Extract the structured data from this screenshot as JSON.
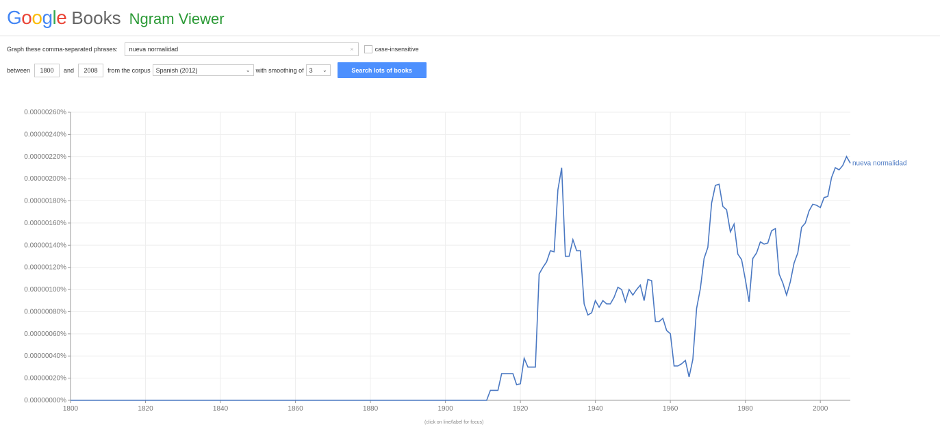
{
  "header": {
    "logo_letters": [
      "G",
      "o",
      "o",
      "g",
      "l",
      "e"
    ],
    "books": "Books",
    "ngram": "Ngram Viewer"
  },
  "form": {
    "phrases_label": "Graph these comma-separated phrases:",
    "phrases_value": "nueva normalidad",
    "clear_symbol": "×",
    "case_label": "case-insensitive",
    "case_checked": false,
    "between_label": "between",
    "start_year": "1800",
    "and_label": "and",
    "end_year": "2008",
    "corpus_label": "from the corpus",
    "corpus_value": "Spanish (2012)",
    "smoothing_label": "with smoothing of",
    "smoothing_value": "3",
    "search_button": "Search lots of books"
  },
  "footnote": "(click on line/label for focus)",
  "colors": {
    "line": "#4a78c2",
    "button": "#4d90fe",
    "brand_green": "#2b9a36"
  },
  "chart_data": {
    "type": "line",
    "xlim": [
      1800,
      2008
    ],
    "ylim": [
      0,
      2.6e-06
    ],
    "grid": true,
    "ytick_labels": [
      "0.00000000%",
      "0.00000020%",
      "0.00000040%",
      "0.00000060%",
      "0.00000080%",
      "0.00000100%",
      "0.00000120%",
      "0.00000140%",
      "0.00000160%",
      "0.00000180%",
      "0.00000200%",
      "0.00000220%",
      "0.00000240%",
      "0.00000260%"
    ],
    "ytick_values": [
      0,
      2e-07,
      4e-07,
      6e-07,
      8e-07,
      1e-06,
      1.2e-06,
      1.4e-06,
      1.6e-06,
      1.8e-06,
      2e-06,
      2.2e-06,
      2.4e-06,
      2.6e-06
    ],
    "xtick_values": [
      1800,
      1820,
      1840,
      1860,
      1880,
      1900,
      1920,
      1940,
      1960,
      1980,
      2000
    ],
    "series": [
      {
        "name": "nueva normalidad",
        "x": [
          1800,
          1910,
          1911,
          1912,
          1913,
          1914,
          1915,
          1916,
          1917,
          1918,
          1919,
          1920,
          1921,
          1922,
          1923,
          1924,
          1925,
          1926,
          1927,
          1928,
          1929,
          1930,
          1931,
          1932,
          1933,
          1934,
          1935,
          1936,
          1937,
          1938,
          1939,
          1940,
          1941,
          1942,
          1943,
          1944,
          1945,
          1946,
          1947,
          1948,
          1949,
          1950,
          1951,
          1952,
          1953,
          1954,
          1955,
          1956,
          1957,
          1958,
          1959,
          1960,
          1961,
          1962,
          1963,
          1964,
          1965,
          1966,
          1967,
          1968,
          1969,
          1970,
          1971,
          1972,
          1973,
          1974,
          1975,
          1976,
          1977,
          1978,
          1979,
          1980,
          1981,
          1982,
          1983,
          1984,
          1985,
          1986,
          1987,
          1988,
          1989,
          1990,
          1991,
          1992,
          1993,
          1994,
          1995,
          1996,
          1997,
          1998,
          1999,
          2000,
          2001,
          2002,
          2003,
          2004,
          2005,
          2006,
          2007,
          2008
        ],
        "y": [
          0,
          0,
          0,
          9e-08,
          9e-08,
          9e-08,
          2.4e-07,
          2.4e-07,
          2.4e-07,
          2.4e-07,
          1.4e-07,
          1.5e-07,
          3.8e-07,
          3e-07,
          3e-07,
          3e-07,
          1.14e-06,
          1.2e-06,
          1.25e-06,
          1.35e-06,
          1.34e-06,
          1.9e-06,
          2.1e-06,
          1.3e-06,
          1.3e-06,
          1.45e-06,
          1.35e-06,
          1.35e-06,
          8.7e-07,
          7.7e-07,
          7.9e-07,
          9e-07,
          8.4e-07,
          9e-07,
          8.7e-07,
          8.7e-07,
          9.3e-07,
          1.02e-06,
          1e-06,
          8.9e-07,
          1e-06,
          9.5e-07,
          1e-06,
          1.04e-06,
          9e-07,
          1.09e-06,
          1.08e-06,
          7.1e-07,
          7.1e-07,
          7.4e-07,
          6.3e-07,
          6e-07,
          3.1e-07,
          3.1e-07,
          3.3e-07,
          3.6e-07,
          2.1e-07,
          3.7e-07,
          8.3e-07,
          1.01e-06,
          1.28e-06,
          1.38e-06,
          1.78e-06,
          1.94e-06,
          1.95e-06,
          1.75e-06,
          1.72e-06,
          1.52e-06,
          1.59e-06,
          1.32e-06,
          1.27e-06,
          1.09e-06,
          8.9e-07,
          1.28e-06,
          1.33e-06,
          1.43e-06,
          1.41e-06,
          1.42e-06,
          1.53e-06,
          1.55e-06,
          1.14e-06,
          1.06e-06,
          9.5e-07,
          1.07e-06,
          1.24e-06,
          1.33e-06,
          1.56e-06,
          1.6e-06,
          1.71e-06,
          1.77e-06,
          1.76e-06,
          1.74e-06,
          1.83e-06,
          1.84e-06,
          2.01e-06,
          2.1e-06,
          2.08e-06,
          2.12e-06,
          2.2e-06,
          2.14e-06
        ]
      }
    ]
  }
}
